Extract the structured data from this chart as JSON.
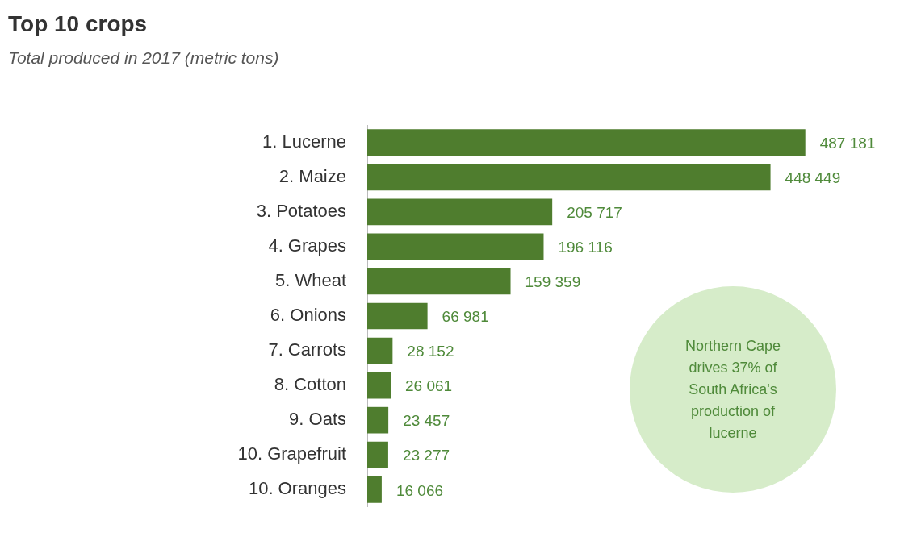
{
  "chart_data": {
    "type": "bar",
    "orientation": "horizontal",
    "title": "Top 10 crops",
    "subtitle": "Total produced in 2017 (metric tons)",
    "categories": [
      "1. Lucerne",
      "2. Maize",
      "3. Potatoes",
      "4. Grapes",
      "5. Wheat",
      "6. Onions",
      "7. Carrots",
      "8. Cotton",
      "9. Oats",
      "10. Grapefruit",
      "10. Oranges"
    ],
    "values": [
      487181,
      448449,
      205717,
      196116,
      159359,
      66981,
      28152,
      26061,
      23457,
      23277,
      16066
    ],
    "value_labels": [
      "487 181",
      "448 449",
      "205 717",
      "196 116",
      "159 359",
      "66 981",
      "28 152",
      "26 061",
      "23 457",
      "23 277",
      "16 066"
    ],
    "color": "#4f7d2e",
    "annotations": [
      "Northern Cape drives 37% of South Africa's production of lucerne"
    ],
    "legend": false
  }
}
